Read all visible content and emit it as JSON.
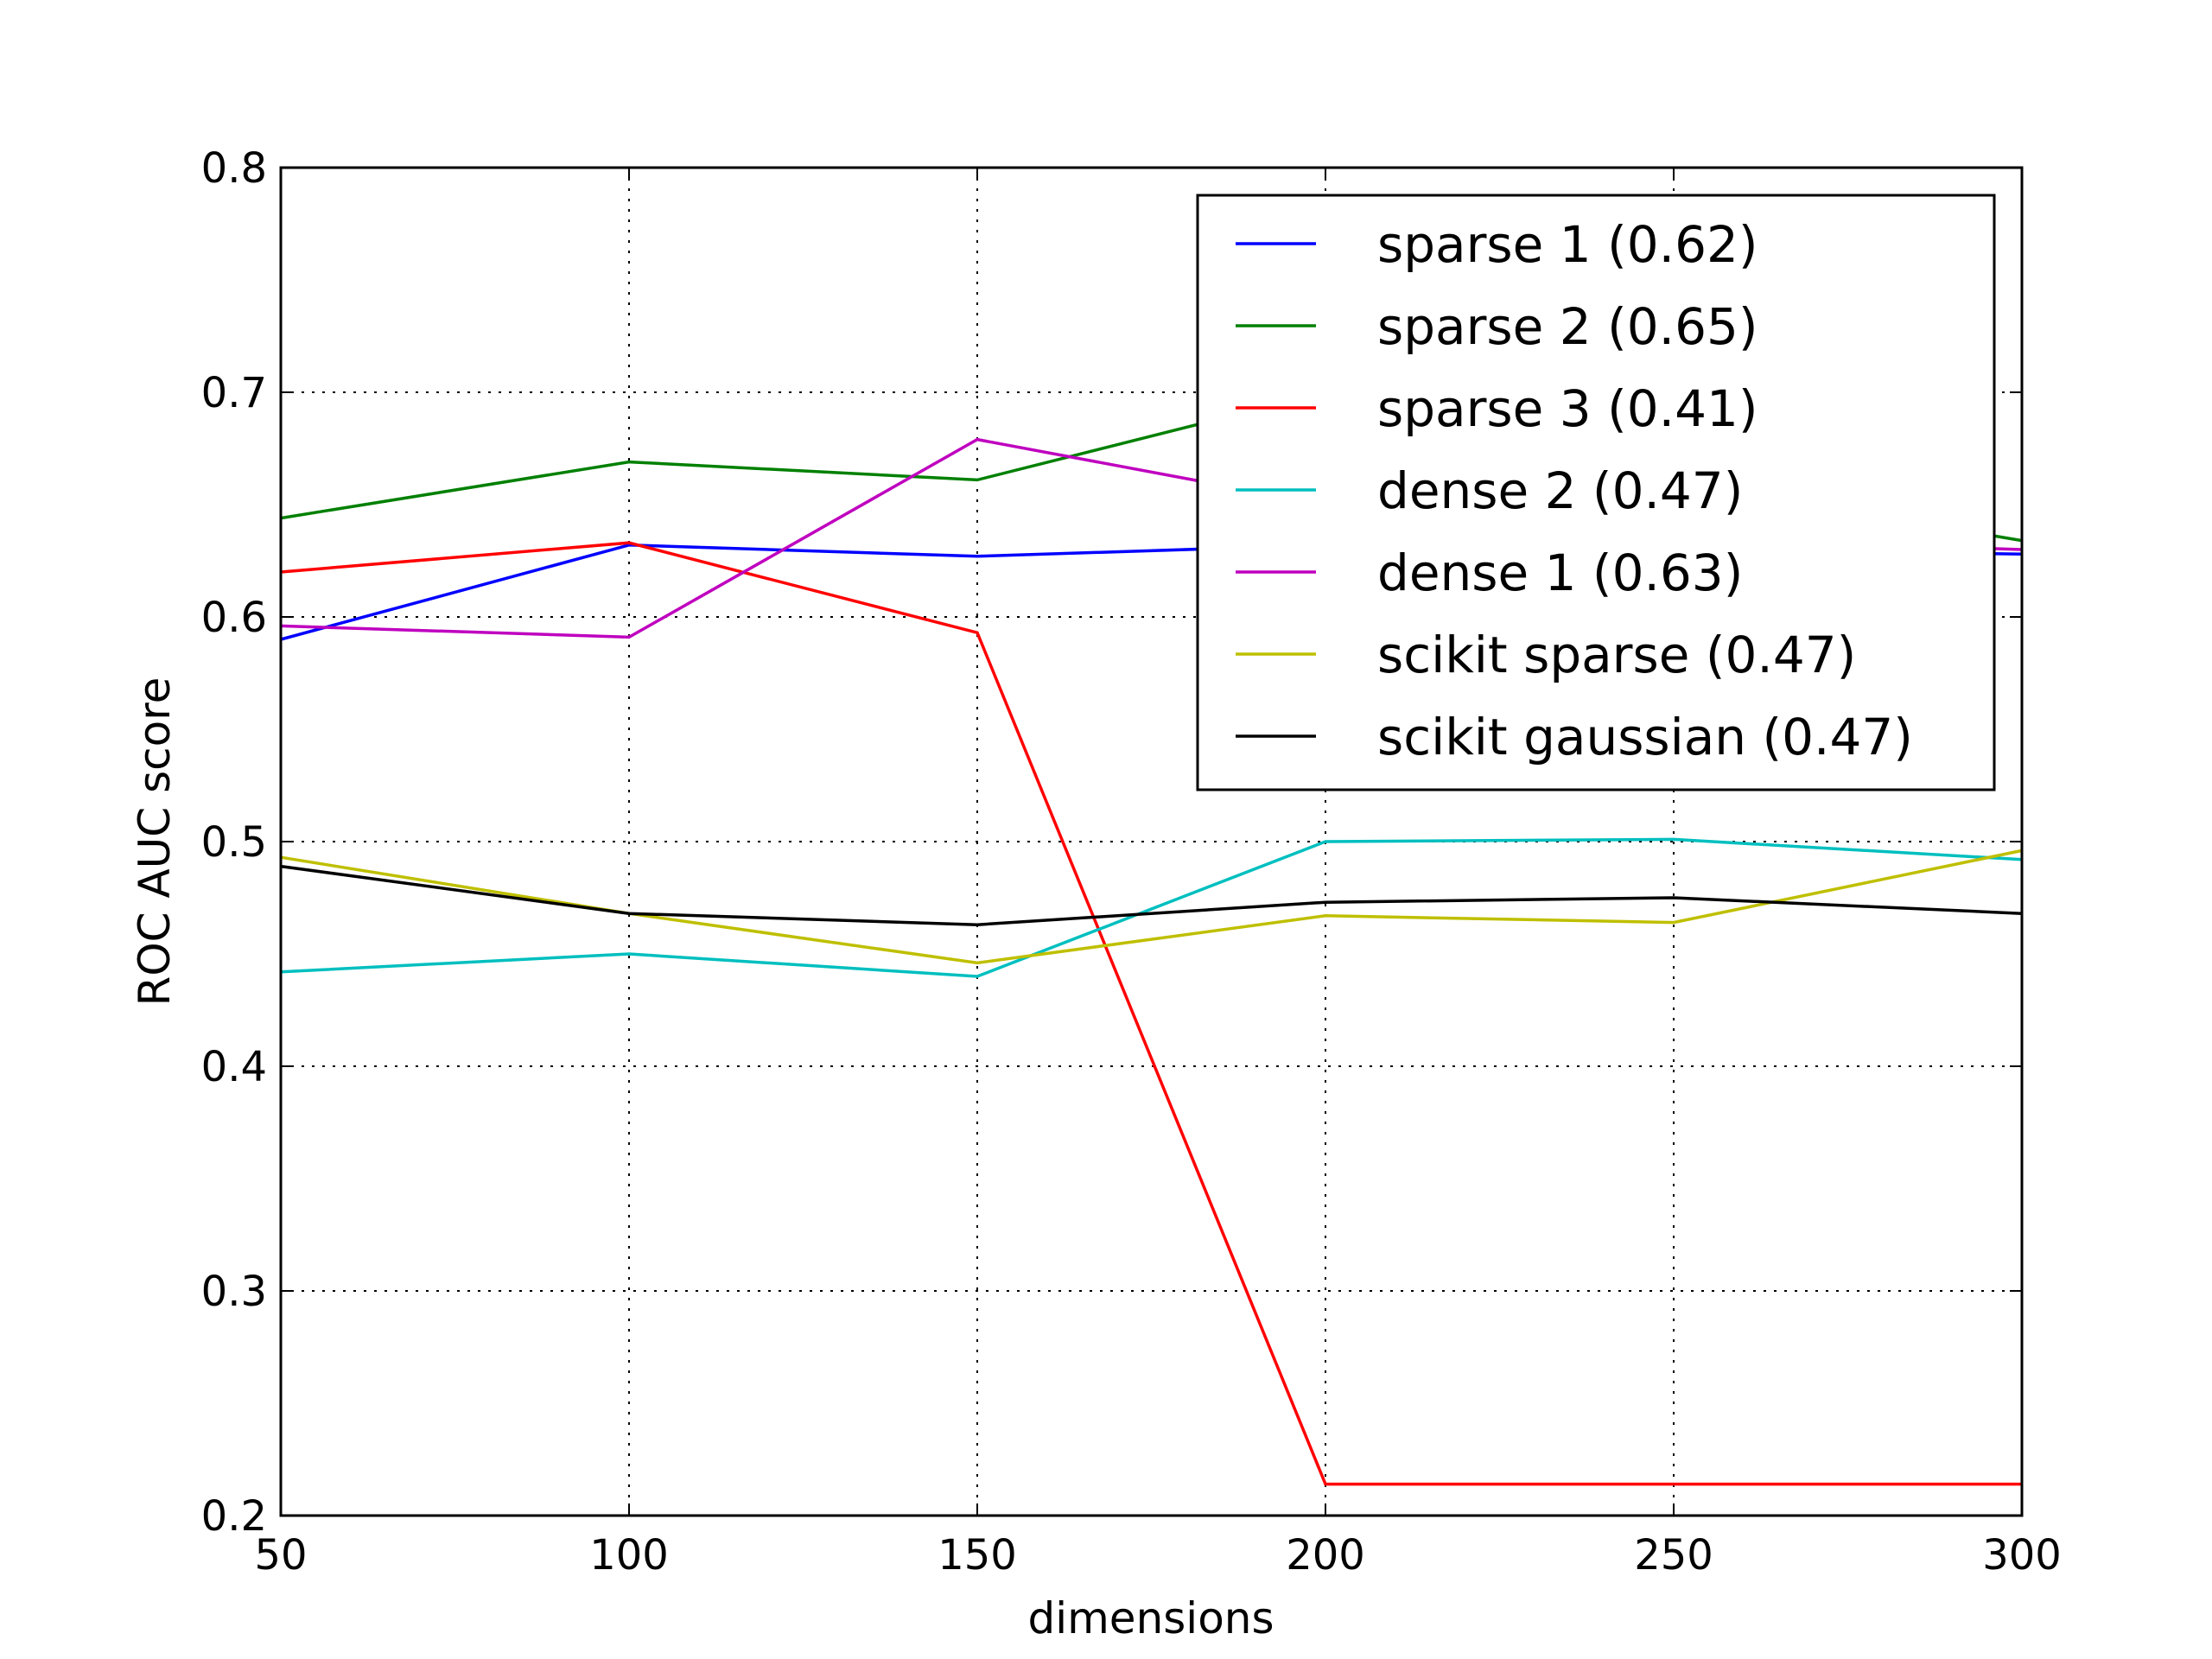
{
  "chart_data": {
    "type": "line",
    "title": "",
    "xlabel": "dimensions",
    "ylabel": "ROC AUC score",
    "x": [
      50,
      100,
      150,
      200,
      250,
      300
    ],
    "xlim": [
      50,
      300
    ],
    "ylim": [
      0.2,
      0.8
    ],
    "xticks": [
      50,
      100,
      150,
      200,
      250,
      300
    ],
    "xtick_labels": [
      "50",
      "100",
      "150",
      "200",
      "250",
      "300"
    ],
    "yticks": [
      0.2,
      0.3,
      0.4,
      0.5,
      0.6,
      0.7,
      0.8
    ],
    "ytick_labels": [
      "0.2",
      "0.3",
      "0.4",
      "0.5",
      "0.6",
      "0.7",
      "0.8"
    ],
    "grid": true,
    "legend_position": "top-right",
    "series": [
      {
        "name": "sparse 1 (0.62)",
        "color": "#0000ff",
        "values": [
          0.59,
          0.632,
          0.627,
          0.632,
          0.63,
          0.628
        ]
      },
      {
        "name": "sparse 2 (0.65)",
        "color": "#008000",
        "values": [
          0.644,
          0.669,
          0.661,
          0.7,
          0.66,
          0.634
        ]
      },
      {
        "name": "sparse 3 (0.41)",
        "color": "#ff0000",
        "values": [
          0.62,
          0.633,
          0.593,
          0.214,
          0.214,
          0.214
        ]
      },
      {
        "name": "dense 2 (0.47)",
        "color": "#00bfbf",
        "values": [
          0.442,
          0.45,
          0.44,
          0.5,
          0.501,
          0.492
        ]
      },
      {
        "name": "dense 1 (0.63)",
        "color": "#bf00bf",
        "values": [
          0.596,
          0.591,
          0.679,
          0.65,
          0.635,
          0.63
        ]
      },
      {
        "name": "scikit sparse (0.47)",
        "color": "#bfbf00",
        "values": [
          0.493,
          0.468,
          0.446,
          0.467,
          0.464,
          0.496
        ]
      },
      {
        "name": "scikit gaussian (0.47)",
        "color": "#000000",
        "values": [
          0.489,
          0.468,
          0.463,
          0.473,
          0.475,
          0.468
        ]
      }
    ]
  }
}
